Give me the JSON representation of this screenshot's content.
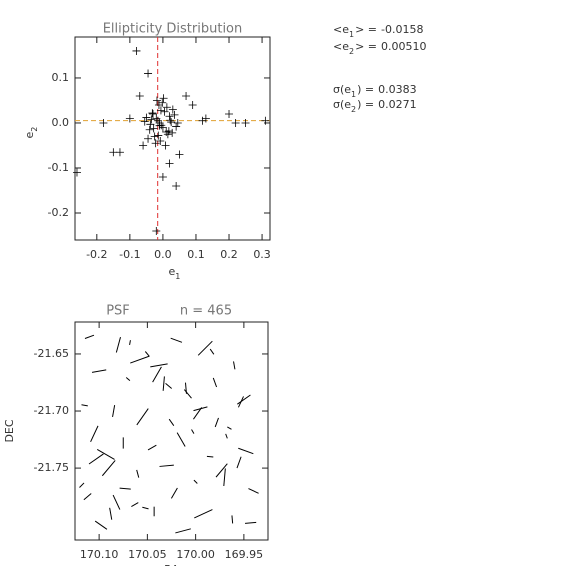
{
  "chart_data": [
    {
      "type": "scatter",
      "title": "Ellipticity Distribution",
      "xlabel": {
        "text": "e",
        "subscript": "1"
      },
      "ylabel": {
        "text": "e",
        "subscript": "2"
      },
      "xlim": [
        -0.266,
        0.324
      ],
      "ylim": [
        -0.26,
        0.191
      ],
      "xticks": [
        -0.2,
        -0.1,
        {
          "value": 0,
          "label": "0.0"
        },
        0.1,
        0.2,
        0.3
      ],
      "yticks": [
        -0.2,
        -0.1,
        {
          "value": 0,
          "label": "0.0"
        },
        0.1
      ],
      "marker_color": "#000000",
      "x": [
        -0.08,
        -0.045,
        -0.26,
        -0.15,
        -0.13,
        -0.02,
        0.04,
        0.0,
        0.25,
        0.31,
        0.13,
        0.2,
        0.22,
        0.12,
        -0.1,
        -0.18,
        0.07,
        0.09,
        -0.07,
        0.05,
        -0.06,
        0.02,
        -0.01,
        -0.02,
        0.0,
        -0.03,
        0.01,
        -0.015,
        -0.005,
        0.02,
        -0.04,
        0.03,
        -0.025,
        0.005,
        -0.035,
        0.015,
        -0.012,
        -0.008,
        0.025,
        -0.05,
        0.04,
        -0.018,
        0.008,
        -0.028,
        0.012,
        -0.045,
        0.035,
        -0.002,
        -0.022,
        0.018,
        -0.032,
        0.028,
        -0.055,
        0.045,
        -0.006,
        -0.014,
        0.002,
        -0.038,
        0.022,
        -0.01
      ],
      "y": [
        0.16,
        0.11,
        -0.11,
        -0.065,
        -0.065,
        -0.24,
        -0.14,
        -0.12,
        0.0,
        0.005,
        0.01,
        0.02,
        0.0,
        0.005,
        0.01,
        0.0,
        0.06,
        0.04,
        0.06,
        -0.07,
        -0.05,
        -0.09,
        0.0,
        0.01,
        -0.01,
        0.02,
        -0.02,
        0.005,
        -0.005,
        0.015,
        -0.015,
        0.03,
        -0.03,
        0.025,
        0.008,
        -0.025,
        0.04,
        -0.04,
        0.002,
        0.012,
        -0.008,
        0.05,
        -0.05,
        -0.012,
        0.035,
        -0.035,
        0.018,
        0.045,
        -0.045,
        -0.018,
        0.022,
        -0.022,
        0.003,
        0.0,
        0.028,
        -0.028,
        0.055,
        -0.003,
        0.006,
        -0.006
      ],
      "stats": [
        {
          "lhs": "<e",
          "sub": "1",
          "rhs": "> =",
          "value": -0.0158
        },
        {
          "lhs": "<e",
          "sub": "2",
          "rhs": "> =",
          "value": 0.0051,
          "value_label": "0.00510"
        },
        {
          "lhs": "σ(e",
          "sub": "1",
          "rhs": ") =",
          "value": 0.0383
        },
        {
          "lhs": "σ(e",
          "sub": "2",
          "rhs": ") =",
          "value": 0.0271
        }
      ],
      "mean_line_colors": [
        "#e03030",
        "#e0a030"
      ]
    },
    {
      "type": "whisker",
      "title": "PSF",
      "annotation": "n = 465",
      "xlabel": "RA",
      "ylabel": "DEC",
      "xlim": [
        170.125,
        169.925
      ],
      "ylim": [
        -21.813,
        -21.622
      ],
      "xticks": [
        {
          "value": 170.1,
          "label": "170.10"
        },
        170.05,
        {
          "value": 170,
          "label": "170.00"
        },
        169.95
      ],
      "yticks": [
        -21.65,
        {
          "value": -21.7,
          "label": "-21.70"
        },
        -21.75
      ],
      "color": "#000000",
      "x": [
        170.11,
        170.08,
        170.05,
        170.02,
        169.99,
        169.96,
        170.1,
        170.07,
        170.04,
        170.01,
        169.98,
        169.95,
        170.115,
        170.085,
        170.055,
        170.025,
        169.995,
        169.965,
        170.105,
        170.075,
        170.045,
        170.015,
        169.985,
        169.955,
        170.09,
        170.06,
        170.03,
        170.0,
        169.97,
        169.94,
        170.112,
        170.082,
        170.052,
        170.022,
        169.992,
        169.962,
        170.098,
        170.068,
        170.038,
        170.008,
        169.978,
        169.948,
        170.118,
        170.088,
        170.058,
        170.028,
        169.998,
        169.968,
        170.103,
        170.073,
        170.043,
        170.013,
        169.983,
        169.953,
        170.093,
        170.063,
        170.033,
        170.003,
        169.973,
        169.943
      ],
      "y": [
        -21.635,
        -21.642,
        -21.65,
        -21.638,
        -21.645,
        -21.66,
        -21.665,
        -21.672,
        -21.668,
        -21.68,
        -21.675,
        -21.69,
        -21.695,
        -21.7,
        -21.705,
        -21.71,
        -21.698,
        -21.715,
        -21.72,
        -21.728,
        -21.732,
        -21.725,
        -21.74,
        -21.745,
        -21.75,
        -21.755,
        -21.748,
        -21.762,
        -21.758,
        -21.77,
        -21.775,
        -21.78,
        -21.785,
        -21.772,
        -21.79,
        -21.795,
        -21.8,
        -21.64,
        -21.66,
        -21.685,
        -21.71,
        -21.735,
        -21.765,
        -21.79,
        -21.655,
        -21.678,
        -21.702,
        -21.722,
        -21.742,
        -21.768,
        -21.788,
        -21.805,
        -21.648,
        -21.692,
        -21.738,
        -21.782,
        -21.676,
        -21.718,
        -21.752,
        -21.798
      ],
      "e": [
        0.012,
        0.02,
        0.008,
        0.015,
        0.025,
        0.01,
        0.018,
        0.006,
        0.022,
        0.014,
        0.012,
        0.02,
        0.008,
        0.015,
        0.025,
        0.01,
        0.018,
        0.006,
        0.022,
        0.014,
        0.012,
        0.02,
        0.008,
        0.015,
        0.025,
        0.01,
        0.018,
        0.006,
        0.022,
        0.014,
        0.012,
        0.02,
        0.008,
        0.015,
        0.025,
        0.01,
        0.018,
        0.006,
        0.022,
        0.014,
        0.012,
        0.02,
        0.008,
        0.015,
        0.025,
        0.01,
        0.018,
        0.006,
        0.022,
        0.014,
        0.012,
        0.02,
        0.008,
        0.015,
        0.025,
        0.01,
        0.018,
        0.006,
        0.022,
        0.014
      ],
      "angle": [
        20,
        75,
        130,
        160,
        45,
        100,
        10,
        140,
        60,
        95,
        110,
        35,
        170,
        80,
        55,
        125,
        15,
        150,
        65,
        90,
        30,
        120,
        175,
        70,
        50,
        105,
        5,
        135,
        85,
        155,
        40,
        115,
        165,
        60,
        25,
        95,
        145,
        80,
        10,
        130,
        70,
        160,
        45,
        100,
        20,
        140,
        55,
        110,
        35,
        175,
        90,
        15,
        125,
        65,
        150,
        30,
        85,
        120,
        50,
        5
      ]
    }
  ]
}
